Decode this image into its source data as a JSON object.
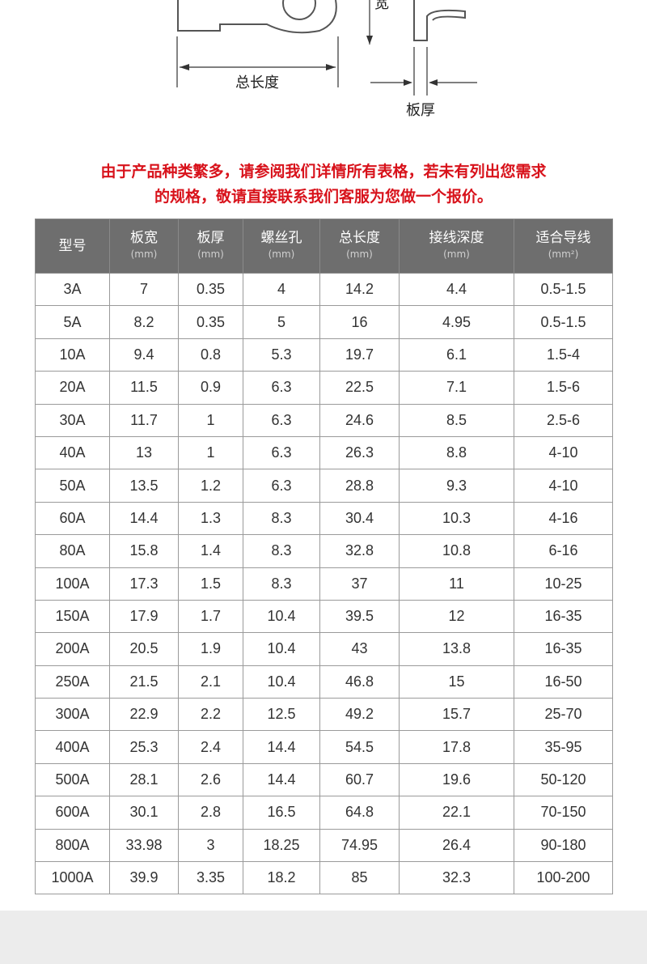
{
  "diagram": {
    "width_label": "宽",
    "length_label": "总长度",
    "thickness_label": "板厚"
  },
  "notice": {
    "line1": "由于产品种类繁多，请参阅我们详情所有表格，若未有列出您需求",
    "line2": "的规格，敬请直接联系我们客服为您做一个报价。"
  },
  "table": {
    "columns": [
      {
        "name": "型号",
        "unit": null
      },
      {
        "name": "板宽",
        "unit": "(mm)"
      },
      {
        "name": "板厚",
        "unit": "(mm)"
      },
      {
        "name": "螺丝孔",
        "unit": "(mm)"
      },
      {
        "name": "总长度",
        "unit": "(mm)"
      },
      {
        "name": "接线深度",
        "unit": "(mm)"
      },
      {
        "name": "适合导线",
        "unit": "(mm²)"
      }
    ],
    "rows": [
      [
        "3A",
        "7",
        "0.35",
        "4",
        "14.2",
        "4.4",
        "0.5-1.5"
      ],
      [
        "5A",
        "8.2",
        "0.35",
        "5",
        "16",
        "4.95",
        "0.5-1.5"
      ],
      [
        "10A",
        "9.4",
        "0.8",
        "5.3",
        "19.7",
        "6.1",
        "1.5-4"
      ],
      [
        "20A",
        "11.5",
        "0.9",
        "6.3",
        "22.5",
        "7.1",
        "1.5-6"
      ],
      [
        "30A",
        "11.7",
        "1",
        "6.3",
        "24.6",
        "8.5",
        "2.5-6"
      ],
      [
        "40A",
        "13",
        "1",
        "6.3",
        "26.3",
        "8.8",
        "4-10"
      ],
      [
        "50A",
        "13.5",
        "1.2",
        "6.3",
        "28.8",
        "9.3",
        "4-10"
      ],
      [
        "60A",
        "14.4",
        "1.3",
        "8.3",
        "30.4",
        "10.3",
        "4-16"
      ],
      [
        "80A",
        "15.8",
        "1.4",
        "8.3",
        "32.8",
        "10.8",
        "6-16"
      ],
      [
        "100A",
        "17.3",
        "1.5",
        "8.3",
        "37",
        "11",
        "10-25"
      ],
      [
        "150A",
        "17.9",
        "1.7",
        "10.4",
        "39.5",
        "12",
        "16-35"
      ],
      [
        "200A",
        "20.5",
        "1.9",
        "10.4",
        "43",
        "13.8",
        "16-35"
      ],
      [
        "250A",
        "21.5",
        "2.1",
        "10.4",
        "46.8",
        "15",
        "16-50"
      ],
      [
        "300A",
        "22.9",
        "2.2",
        "12.5",
        "49.2",
        "15.7",
        "25-70"
      ],
      [
        "400A",
        "25.3",
        "2.4",
        "14.4",
        "54.5",
        "17.8",
        "35-95"
      ],
      [
        "500A",
        "28.1",
        "2.6",
        "14.4",
        "60.7",
        "19.6",
        "50-120"
      ],
      [
        "600A",
        "30.1",
        "2.8",
        "16.5",
        "64.8",
        "22.1",
        "70-150"
      ],
      [
        "800A",
        "33.98",
        "3",
        "18.25",
        "74.95",
        "26.4",
        "90-180"
      ],
      [
        "1000A",
        "39.9",
        "3.35",
        "18.2",
        "85",
        "32.3",
        "100-200"
      ]
    ]
  }
}
